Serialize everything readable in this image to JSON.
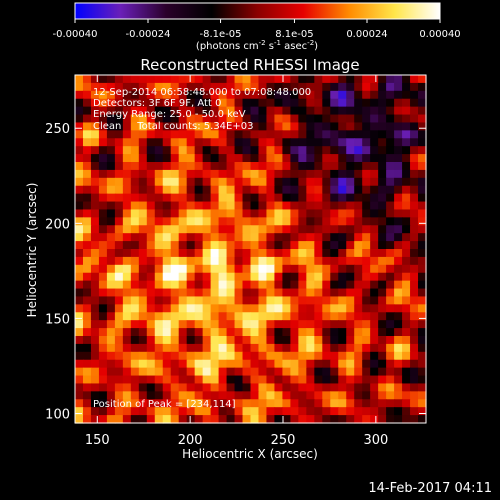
{
  "colorbar": {
    "ticks": [
      "-0.00040",
      "-0.00024",
      "-8.1e-05",
      "8.1e-05",
      "0.00024",
      "0.00040"
    ],
    "unit": "(photons cm",
    "unit_sup1": "-2",
    "unit_mid": " s",
    "unit_sup2": "-1",
    "unit_mid2": " asec",
    "unit_sup3": "-2",
    "unit_end": ")",
    "vmin": -0.0004,
    "vmax": 0.0004,
    "colormap": [
      "#0000ff",
      "#6a1fb8",
      "#2a002a",
      "#000000",
      "#8b0000",
      "#e60000",
      "#ff8a00",
      "#ffe54a",
      "#ffffff"
    ]
  },
  "chart_data": {
    "type": "heatmap",
    "title": "Reconstructed RHESSI Image",
    "xlabel": "Heliocentric X (arcsec)",
    "ylabel": "Heliocentric Y (arcsec)",
    "xlim": [
      138,
      327
    ],
    "ylim": [
      95,
      278
    ],
    "xticks": [
      150,
      200,
      250,
      300
    ],
    "yticks": [
      100,
      150,
      200,
      250
    ],
    "annotations": {
      "line1": "12-Sep-2014 06:58:48.000 to 07:08:48.000",
      "line2": "Detectors: 3F 6F 9F, Att 0",
      "line3": "Energy Range: 25.0 - 50.0 keV",
      "line4": "Clean     Total counts: 5.34E+03",
      "peak": "Position of Peak = [234,114]"
    },
    "peak_position": [
      234,
      114
    ],
    "grid": false
  },
  "footer": {
    "timestamp": "14-Feb-2017 04:11"
  }
}
